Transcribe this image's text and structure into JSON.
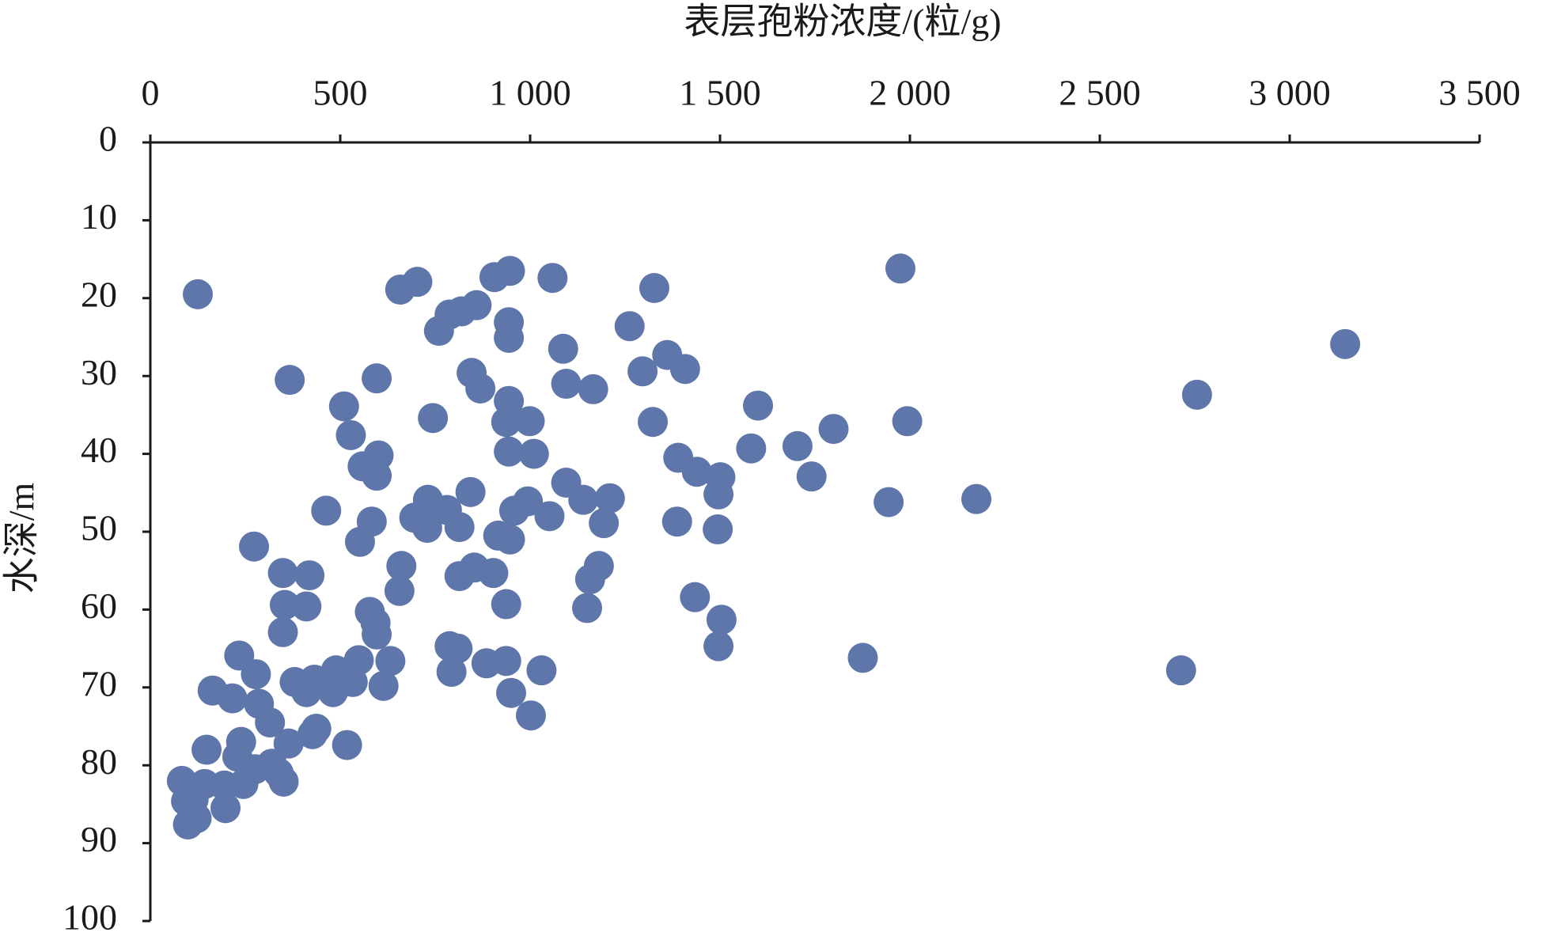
{
  "chart_data": {
    "type": "scatter",
    "xlabel": "表层孢粉浓度/(粒/g)",
    "ylabel": "水深/m",
    "color": "#5f76aa",
    "x": [
      125,
      367,
      658,
      703,
      906,
      947,
      1059,
      1327,
      1975,
      3146,
      2756,
      1993,
      2175,
      1944,
      1876,
      2714,
      788,
      819,
      859,
      944,
      944,
      760,
      1262,
      1087,
      1361,
      1296,
      1408,
      1095,
      1166,
      596,
      846,
      869,
      510,
      528,
      744,
      944,
      937,
      999,
      1323,
      1600,
      1799,
      1582,
      1704,
      1741,
      1390,
      1439,
      1501,
      1496,
      1494,
      1387,
      601,
      559,
      596,
      944,
      1010,
      1095,
      1140,
      1210,
      1194,
      843,
      731,
      781,
      695,
      729,
      814,
      958,
      994,
      1051,
      916,
      947,
      463,
      583,
      552,
      273,
      661,
      656,
      349,
      419,
      354,
      411,
      349,
      814,
      853,
      903,
      937,
      1181,
      1158,
      1150,
      1434,
      1504,
      1496,
      578,
      593,
      596,
      788,
      809,
      793,
      885,
      937,
      1030,
      950,
      1002,
      549,
      632,
      489,
      533,
      614,
      380,
      432,
      411,
      481,
      234,
      278,
      164,
      216,
      286,
      315,
      364,
      437,
      427,
      518,
      148,
      239,
      229,
      276,
      320,
      338,
      351,
      245,
      195,
      83,
      143,
      114,
      94,
      198,
      122,
      99
    ],
    "values": [
      19.5,
      30.5,
      18.9,
      17.9,
      17.3,
      16.5,
      17.4,
      18.7,
      16.2,
      25.9,
      32.4,
      35.8,
      45.8,
      46.2,
      66.2,
      67.8,
      22.1,
      21.7,
      20.9,
      23.1,
      25.1,
      24.2,
      23.6,
      26.5,
      27.3,
      29.4,
      29.1,
      31.0,
      31.7,
      30.3,
      29.6,
      31.6,
      33.9,
      37.6,
      35.4,
      33.2,
      35.9,
      35.8,
      35.9,
      33.8,
      36.8,
      39.3,
      39.0,
      42.9,
      40.5,
      42.3,
      43.0,
      45.2,
      49.7,
      48.7,
      40.2,
      41.6,
      42.8,
      39.7,
      40.0,
      43.7,
      45.9,
      45.7,
      48.9,
      44.9,
      45.9,
      47.2,
      48.2,
      49.5,
      49.4,
      47.3,
      46.1,
      48.0,
      50.5,
      51.0,
      47.3,
      48.7,
      51.3,
      51.9,
      54.4,
      57.6,
      55.3,
      55.6,
      59.4,
      59.6,
      62.9,
      55.7,
      54.6,
      55.3,
      59.3,
      54.4,
      56.1,
      59.8,
      58.4,
      61.3,
      64.7,
      60.3,
      61.7,
      63.2,
      64.7,
      65.0,
      68.0,
      66.9,
      66.6,
      67.8,
      70.7,
      73.6,
      66.5,
      66.6,
      67.8,
      69.3,
      69.8,
      69.3,
      69.0,
      70.6,
      70.6,
      65.9,
      68.3,
      70.4,
      71.4,
      72.1,
      74.5,
      77.2,
      75.3,
      76.0,
      77.4,
      78.0,
      77.0,
      78.9,
      80.5,
      79.8,
      81.0,
      82.1,
      82.4,
      82.6,
      82.0,
      82.4,
      84.4,
      84.6,
      85.5,
      86.8,
      87.6
    ],
    "xlim": [
      0,
      3500
    ],
    "xticks": [
      0,
      500,
      {
        "value": 1000,
        "label": "1 000"
      },
      {
        "value": 1500,
        "label": "1 500"
      },
      {
        "value": 2000,
        "label": "2 000"
      },
      {
        "value": 2500,
        "label": "2 500"
      },
      {
        "value": 3000,
        "label": "3 000"
      },
      {
        "value": 3500,
        "label": "3 500"
      }
    ],
    "ylim": [
      0,
      100
    ],
    "yticks": [
      0,
      10,
      20,
      30,
      40,
      50,
      60,
      70,
      80,
      90,
      100
    ],
    "y_inverted": true,
    "x_axis_position": "top"
  }
}
